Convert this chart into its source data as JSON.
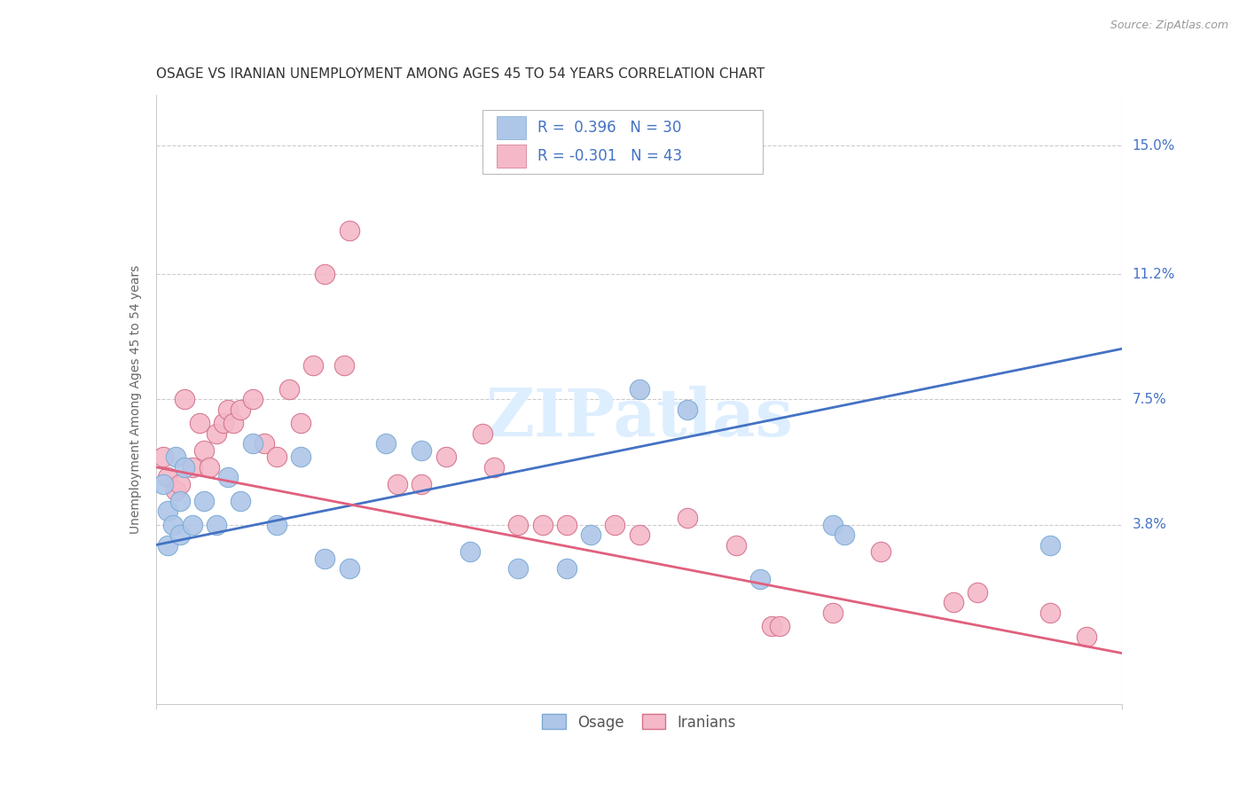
{
  "title": "OSAGE VS IRANIAN UNEMPLOYMENT AMONG AGES 45 TO 54 YEARS CORRELATION CHART",
  "source": "Source: ZipAtlas.com",
  "ylabel": "Unemployment Among Ages 45 to 54 years",
  "ytick_labels": [
    "3.8%",
    "7.5%",
    "11.2%",
    "15.0%"
  ],
  "ytick_values": [
    3.8,
    7.5,
    11.2,
    15.0
  ],
  "xlim": [
    0.0,
    40.0
  ],
  "ylim": [
    -1.5,
    16.5
  ],
  "watermark_text": "ZIPatlas",
  "osage_color": "#aec6e8",
  "osage_edge_color": "#7baad4",
  "iranian_color": "#f4b8c8",
  "iranian_edge_color": "#d4708a",
  "osage_line_color": "#4472c4",
  "iranian_line_color": "#e0607e",
  "background_color": "#ffffff",
  "grid_color": "#cccccc",
  "title_fontsize": 11,
  "axis_label_fontsize": 10,
  "tick_fontsize": 11,
  "legend_fontsize": 12,
  "osage_x": [
    0.3,
    0.5,
    0.5,
    0.7,
    0.8,
    1.0,
    1.0,
    1.2,
    1.5,
    2.0,
    2.5,
    3.0,
    3.5,
    4.0,
    5.0,
    6.0,
    7.0,
    8.0,
    9.5,
    11.0,
    13.0,
    15.0,
    17.0,
    18.0,
    20.0,
    22.0,
    25.0,
    28.0,
    28.5,
    37.0
  ],
  "osage_y": [
    5.0,
    4.2,
    3.2,
    3.8,
    5.8,
    4.5,
    3.5,
    5.5,
    3.8,
    4.5,
    3.8,
    5.2,
    4.5,
    6.2,
    3.8,
    5.8,
    2.8,
    2.5,
    6.2,
    6.0,
    3.0,
    2.5,
    2.5,
    3.5,
    7.8,
    7.2,
    2.2,
    3.8,
    3.5,
    3.2
  ],
  "iranian_x": [
    0.3,
    0.5,
    0.8,
    1.0,
    1.2,
    1.5,
    1.8,
    2.0,
    2.2,
    2.5,
    2.8,
    3.0,
    3.2,
    3.5,
    4.0,
    4.5,
    5.0,
    5.5,
    6.0,
    6.5,
    7.0,
    7.8,
    8.0,
    10.0,
    11.0,
    12.0,
    13.5,
    14.0,
    15.0,
    16.0,
    17.0,
    19.0,
    20.0,
    22.0,
    24.0,
    25.5,
    25.8,
    28.0,
    30.0,
    33.0,
    34.0,
    37.0,
    38.5
  ],
  "iranian_y": [
    5.8,
    5.2,
    4.8,
    5.0,
    7.5,
    5.5,
    6.8,
    6.0,
    5.5,
    6.5,
    6.8,
    7.2,
    6.8,
    7.2,
    7.5,
    6.2,
    5.8,
    7.8,
    6.8,
    8.5,
    11.2,
    8.5,
    12.5,
    5.0,
    5.0,
    5.8,
    6.5,
    5.5,
    3.8,
    3.8,
    3.8,
    3.8,
    3.5,
    4.0,
    3.2,
    0.8,
    0.8,
    1.2,
    3.0,
    1.5,
    1.8,
    1.2,
    0.5
  ],
  "osage_line_x0": 0.0,
  "osage_line_y0": 3.2,
  "osage_line_x1": 40.0,
  "osage_line_y1": 9.0,
  "iranian_line_x0": 0.0,
  "iranian_line_y0": 5.5,
  "iranian_line_x1": 40.0,
  "iranian_line_y1": 0.0
}
